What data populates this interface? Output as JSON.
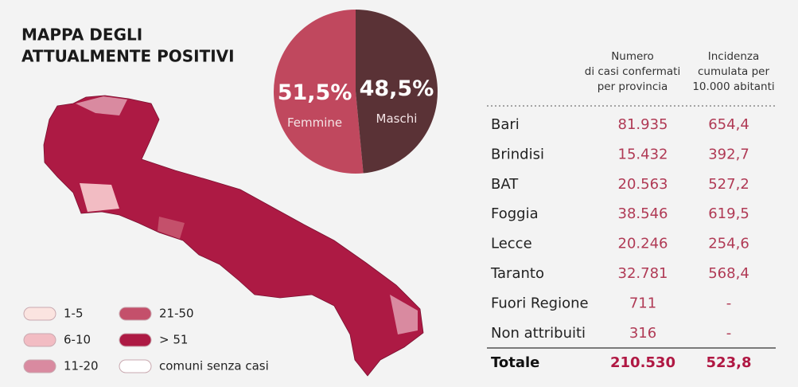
{
  "map": {
    "title": [
      "MAPPA DEGLI",
      "ATTUALMENTE POSITIVI"
    ],
    "legend": [
      {
        "label": "1-5",
        "color": "#fbe4e0"
      },
      {
        "label": "6-10",
        "color": "#f2bcc3"
      },
      {
        "label": "11-20",
        "color": "#d98aa0"
      },
      {
        "label": "21-50",
        "color": "#c4506b"
      },
      {
        "label": "> 51",
        "color": "#ad1a44"
      },
      {
        "label": "comuni senza casi",
        "color": "#ffffff"
      }
    ]
  },
  "chart_data": {
    "type": "pie",
    "categories": [
      "Femmine",
      "Maschi"
    ],
    "values": [
      51.5,
      48.5
    ],
    "value_labels": [
      "51,5%",
      "48,5%"
    ],
    "colors": [
      "#c0485e",
      "#5a3236"
    ]
  },
  "table": {
    "headers": [
      [
        "Numero",
        "di casi confermati",
        "per provincia"
      ],
      [
        "Incidenza",
        "cumulata per",
        "10.000 abitanti"
      ]
    ],
    "rows": [
      [
        "Bari",
        "81.935",
        "654,4"
      ],
      [
        "Brindisi",
        "15.432",
        "392,7"
      ],
      [
        "BAT",
        "20.563",
        "527,2"
      ],
      [
        "Foggia",
        "38.546",
        "619,5"
      ],
      [
        "Lecce",
        "20.246",
        "254,6"
      ],
      [
        "Taranto",
        "32.781",
        "568,4"
      ],
      [
        "Fuori Regione",
        "711",
        "-"
      ],
      [
        "Non attribuiti",
        "316",
        "-"
      ]
    ],
    "total": [
      "Totale",
      "210.530",
      "523,8"
    ]
  }
}
